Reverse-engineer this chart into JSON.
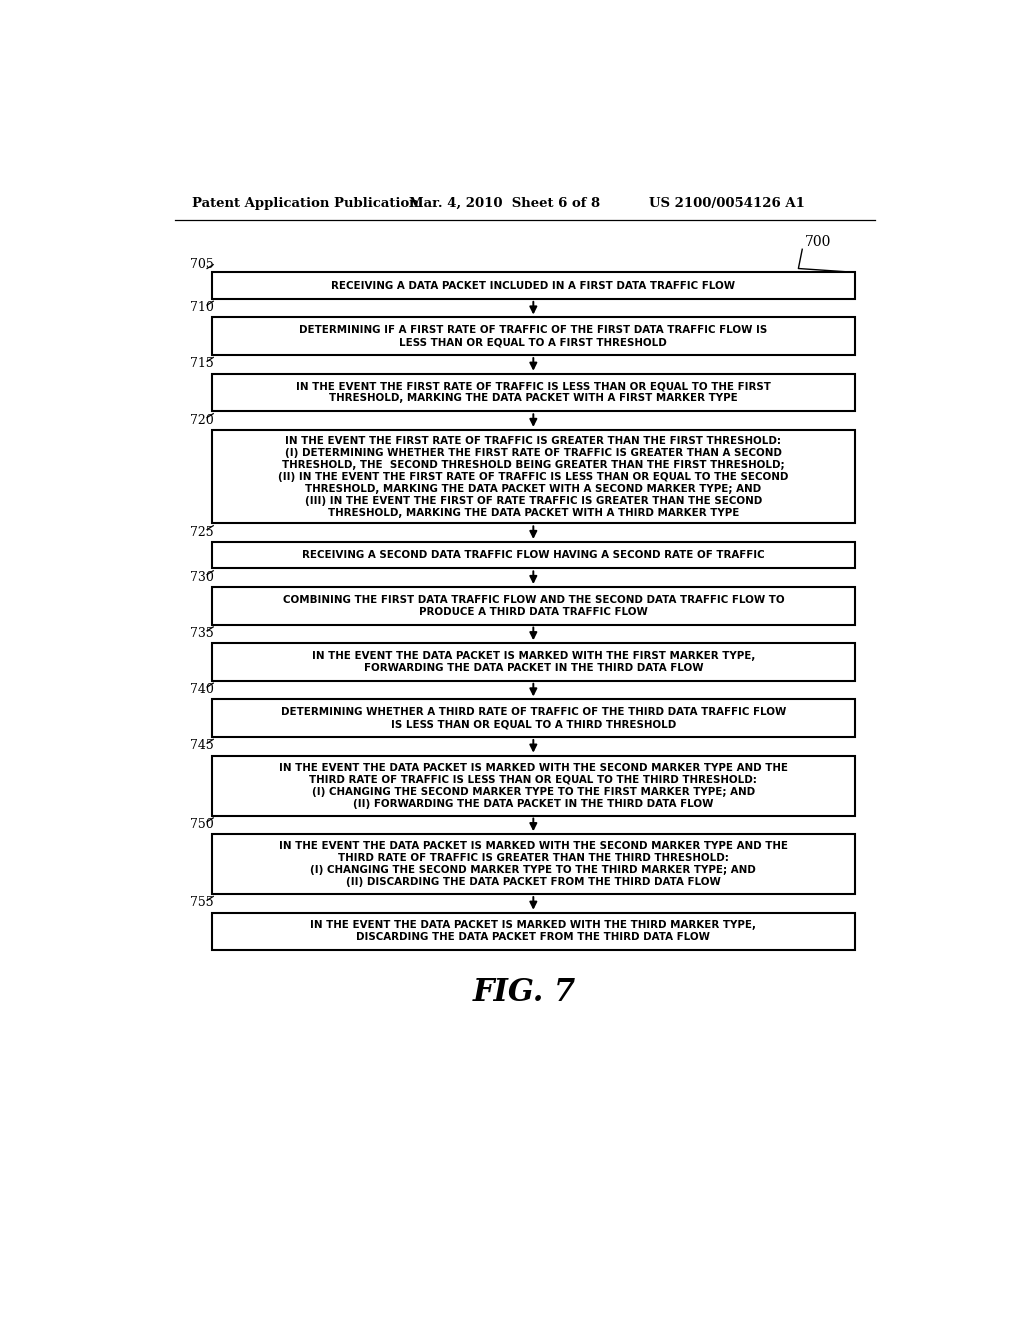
{
  "background": "#ffffff",
  "header_left": "Patent Application Publication",
  "header_mid": "Mar. 4, 2010  Sheet 6 of 8",
  "header_right": "US 2100/0054126 A1",
  "figure_label": "FIG. 7",
  "boxes": [
    {
      "label": "705",
      "lines": [
        "RECEIVING A DATA PACKET INCLUDED IN A FIRST DATA TRAFFIC FLOW"
      ],
      "nlines": 1
    },
    {
      "label": "710",
      "lines": [
        "DETERMINING IF A FIRST RATE OF TRAFFIC OF THE FIRST DATA TRAFFIC FLOW IS",
        "LESS THAN OR EQUAL TO A FIRST THRESHOLD"
      ],
      "nlines": 2
    },
    {
      "label": "715",
      "lines": [
        "IN THE EVENT THE FIRST RATE OF TRAFFIC IS LESS THAN OR EQUAL TO THE FIRST",
        "THRESHOLD, MARKING THE DATA PACKET WITH A FIRST MARKER TYPE"
      ],
      "nlines": 2
    },
    {
      "label": "720",
      "lines": [
        "IN THE EVENT THE FIRST RATE OF TRAFFIC IS GREATER THAN THE FIRST THRESHOLD:",
        "(I) DETERMINING WHETHER THE FIRST RATE OF TRAFFIC IS GREATER THAN A SECOND",
        "THRESHOLD, THE  SECOND THRESHOLD BEING GREATER THAN THE FIRST THRESHOLD;",
        "(II) IN THE EVENT THE FIRST RATE OF TRAFFIC IS LESS THAN OR EQUAL TO THE SECOND",
        "THRESHOLD, MARKING THE DATA PACKET WITH A SECOND MARKER TYPE; AND",
        "(III) IN THE EVENT THE FIRST OF RATE TRAFFIC IS GREATER THAN THE SECOND",
        "THRESHOLD, MARKING THE DATA PACKET WITH A THIRD MARKER TYPE"
      ],
      "nlines": 7
    },
    {
      "label": "725",
      "lines": [
        "RECEIVING A SECOND DATA TRAFFIC FLOW HAVING A SECOND RATE OF TRAFFIC"
      ],
      "nlines": 1
    },
    {
      "label": "730",
      "lines": [
        "COMBINING THE FIRST DATA TRAFFIC FLOW AND THE SECOND DATA TRAFFIC FLOW TO",
        "PRODUCE A THIRD DATA TRAFFIC FLOW"
      ],
      "nlines": 2
    },
    {
      "label": "735",
      "lines": [
        "IN THE EVENT THE DATA PACKET IS MARKED WITH THE FIRST MARKER TYPE,",
        "FORWARDING THE DATA PACKET IN THE THIRD DATA FLOW"
      ],
      "nlines": 2
    },
    {
      "label": "740",
      "lines": [
        "DETERMINING WHETHER A THIRD RATE OF TRAFFIC OF THE THIRD DATA TRAFFIC FLOW",
        "IS LESS THAN OR EQUAL TO A THIRD THRESHOLD"
      ],
      "nlines": 2
    },
    {
      "label": "745",
      "lines": [
        "IN THE EVENT THE DATA PACKET IS MARKED WITH THE SECOND MARKER TYPE AND THE",
        "THIRD RATE OF TRAFFIC IS LESS THAN OR EQUAL TO THE THIRD THRESHOLD:",
        "(I) CHANGING THE SECOND MARKER TYPE TO THE FIRST MARKER TYPE; AND",
        "(II) FORWARDING THE DATA PACKET IN THE THIRD DATA FLOW"
      ],
      "nlines": 4
    },
    {
      "label": "750",
      "lines": [
        "IN THE EVENT THE DATA PACKET IS MARKED WITH THE SECOND MARKER TYPE AND THE",
        "THIRD RATE OF TRAFFIC IS GREATER THAN THE THIRD THRESHOLD:",
        "(I) CHANGING THE SECOND MARKER TYPE TO THE THIRD MARKER TYPE; AND",
        "(II) DISCARDING THE DATA PACKET FROM THE THIRD DATA FLOW"
      ],
      "nlines": 4
    },
    {
      "label": "755",
      "lines": [
        "IN THE EVENT THE DATA PACKET IS MARKED WITH THE THIRD MARKER TYPE,",
        "DISCARDING THE DATA PACKET FROM THE THIRD DATA FLOW"
      ],
      "nlines": 2
    }
  ]
}
